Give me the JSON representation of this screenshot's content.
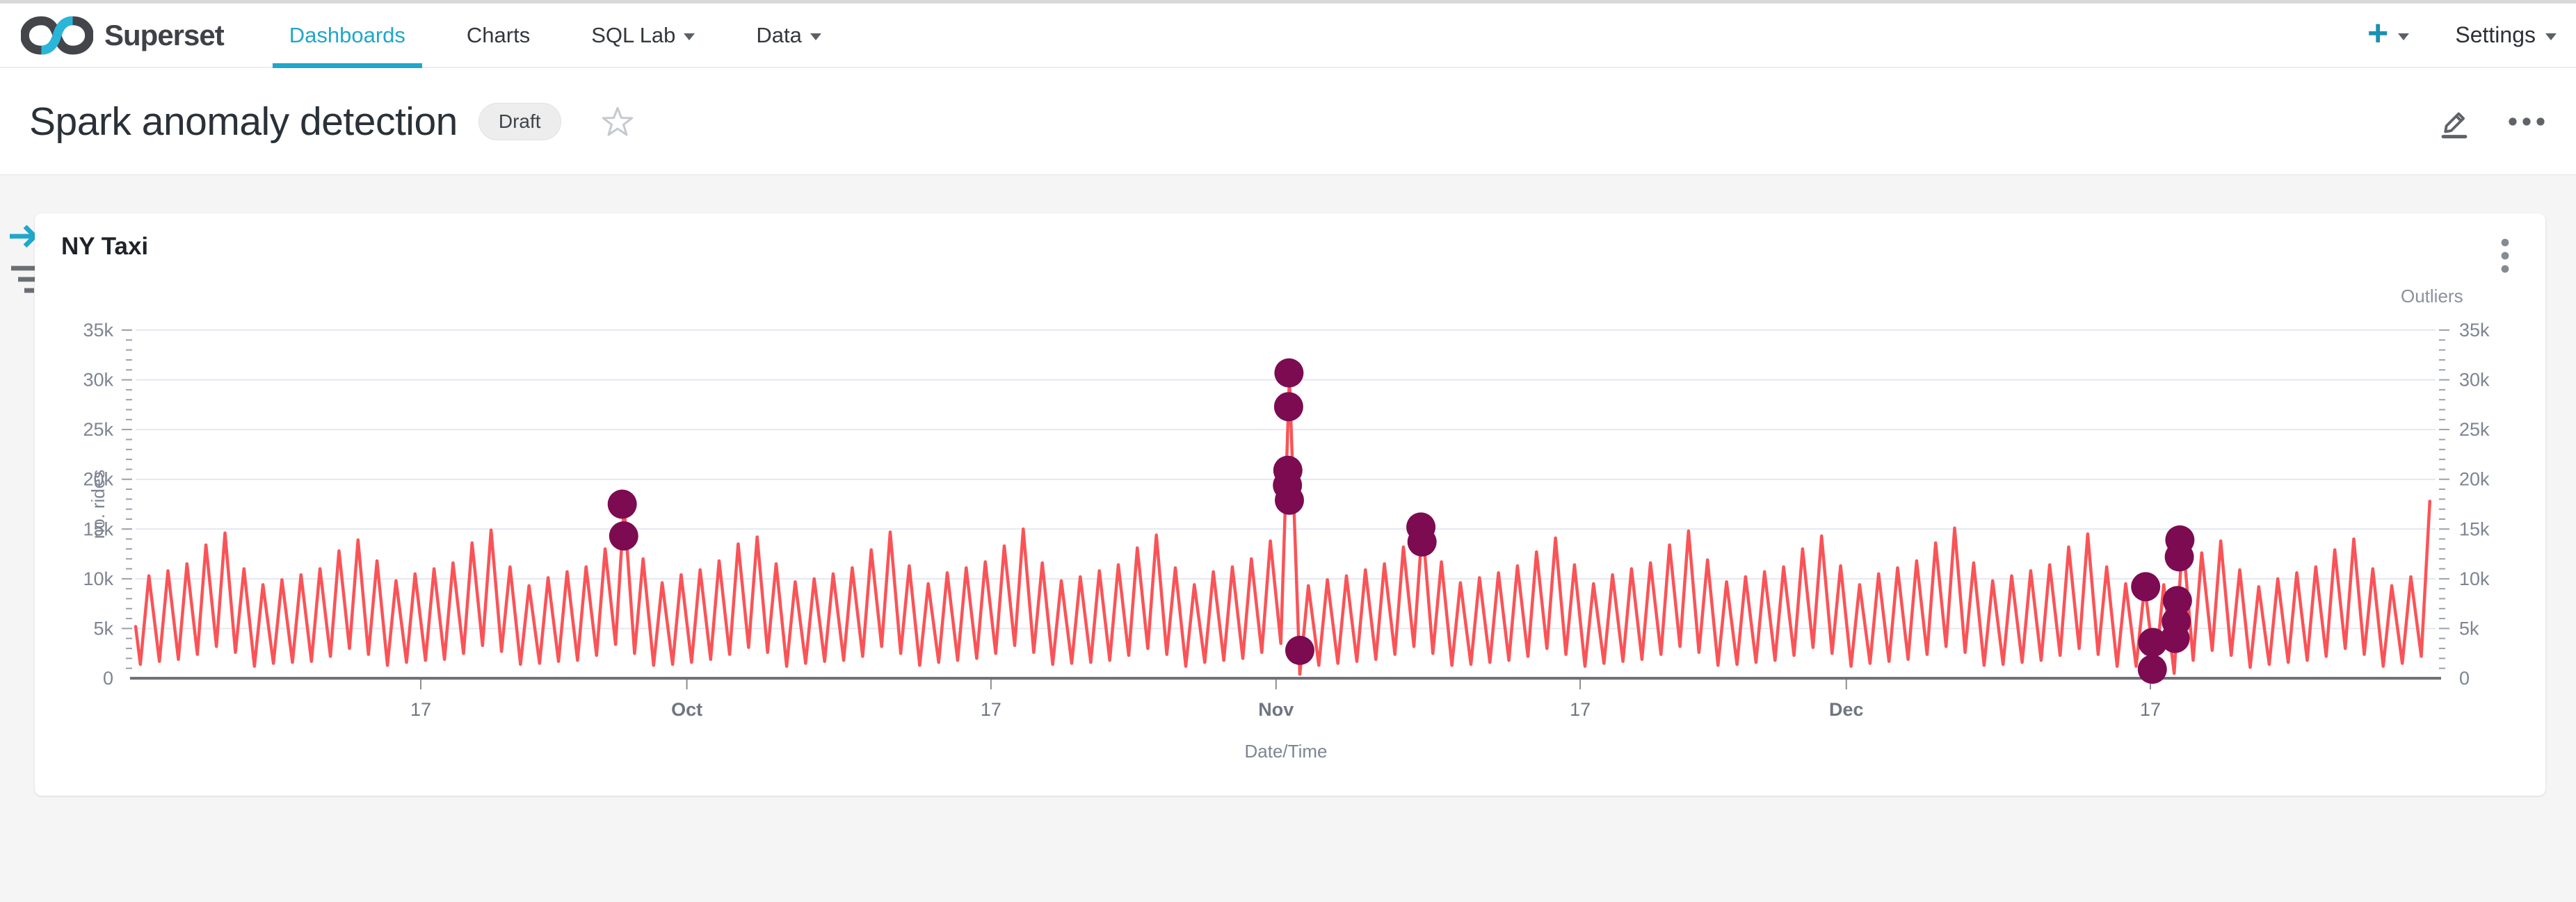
{
  "theme": {
    "accent": "#20a7c9",
    "line_color": "#fa5357",
    "outlier_color": "#7c0b52"
  },
  "nav": {
    "brand": "Superset",
    "items": [
      {
        "label": "Dashboards",
        "active": true,
        "caret": false
      },
      {
        "label": "Charts",
        "active": false,
        "caret": false
      },
      {
        "label": "SQL Lab",
        "active": false,
        "caret": true
      },
      {
        "label": "Data",
        "active": false,
        "caret": true
      }
    ],
    "plus_label": "+",
    "settings_label": "Settings"
  },
  "header": {
    "title": "Spark anomaly detection",
    "status_badge": "Draft"
  },
  "card": {
    "title": "NY Taxi"
  },
  "chart_data": {
    "type": "line",
    "title": "NY Taxi",
    "xlabel": "Date/Time",
    "ylabel_left": "no. rides",
    "ylabel_right": "Outliers",
    "ylim": [
      0,
      35000
    ],
    "y_ticks": [
      "0",
      "5k",
      "10k",
      "15k",
      "20k",
      "25k",
      "30k",
      "35k"
    ],
    "x_tick_labels": [
      "17",
      "Oct",
      "17",
      "Nov",
      "17",
      "Dec",
      "17"
    ],
    "x_tick_days": [
      15,
      29,
      45,
      60,
      76,
      90,
      106
    ],
    "days_total": 121,
    "grid": true,
    "legend_position": "none",
    "series": [
      {
        "name": "rides",
        "type": "line",
        "color": "#fa5357",
        "points_per_day": 2,
        "lead_in_k": 5.2,
        "daily_troughs_k": [
          1.4,
          1.7,
          1.9,
          2.4,
          3.2,
          2.6,
          1.2,
          1.5,
          1.6,
          1.7,
          2.2,
          3.0,
          2.4,
          1.3,
          1.6,
          1.8,
          1.9,
          2.5,
          3.3,
          2.7,
          1.4,
          1.5,
          1.7,
          1.8,
          2.3,
          3.4,
          2.5,
          1.3,
          1.4,
          1.6,
          1.9,
          2.4,
          3.1,
          2.6,
          1.2,
          1.5,
          1.7,
          1.8,
          2.2,
          3.2,
          2.5,
          1.3,
          1.6,
          1.8,
          2.0,
          2.5,
          3.3,
          2.6,
          1.4,
          1.5,
          1.6,
          1.8,
          2.3,
          3.0,
          2.4,
          1.2,
          1.6,
          1.8,
          2.0,
          2.6,
          3.5,
          0.4,
          1.3,
          1.5,
          1.7,
          1.9,
          2.4,
          3.2,
          2.5,
          1.3,
          1.4,
          1.6,
          1.8,
          2.2,
          3.0,
          2.4,
          1.2,
          1.5,
          1.7,
          1.9,
          2.4,
          3.2,
          2.6,
          1.3,
          1.4,
          1.6,
          1.8,
          2.3,
          3.1,
          2.5,
          1.2,
          1.5,
          1.7,
          1.9,
          2.4,
          3.2,
          2.6,
          1.3,
          1.4,
          1.6,
          1.8,
          2.3,
          3.0,
          2.4,
          1.2,
          1.2,
          0.6,
          0.5,
          1.8,
          2.8,
          2.3,
          1.1,
          1.4,
          1.6,
          1.8,
          2.2,
          3.0,
          2.4,
          1.2,
          1.5,
          2.2
        ],
        "daily_peaks_k": [
          10.3,
          10.8,
          11.5,
          13.4,
          14.6,
          11.0,
          9.4,
          9.9,
          10.4,
          11.0,
          12.8,
          13.9,
          11.8,
          9.8,
          10.5,
          11.0,
          11.6,
          13.6,
          14.9,
          11.2,
          9.3,
          10.1,
          10.7,
          11.2,
          13.0,
          17.3,
          12.0,
          9.6,
          10.4,
          10.9,
          11.8,
          13.5,
          14.2,
          11.5,
          9.7,
          10.0,
          10.5,
          11.1,
          12.9,
          14.7,
          11.3,
          9.5,
          10.6,
          11.1,
          11.7,
          13.3,
          15.0,
          11.6,
          9.8,
          10.2,
          10.8,
          11.4,
          13.1,
          14.4,
          11.1,
          9.4,
          10.7,
          11.2,
          12.0,
          13.8,
          30.2,
          9.3,
          9.9,
          10.3,
          10.9,
          11.5,
          13.2,
          15.4,
          11.7,
          9.6,
          10.1,
          10.6,
          11.3,
          12.7,
          14.1,
          11.4,
          9.5,
          10.4,
          11.0,
          11.6,
          13.4,
          14.8,
          11.9,
          9.7,
          10.2,
          10.7,
          11.2,
          13.0,
          14.3,
          11.3,
          9.4,
          10.5,
          11.1,
          11.8,
          13.6,
          15.1,
          11.6,
          9.8,
          10.3,
          10.8,
          11.4,
          13.2,
          14.5,
          11.2,
          9.5,
          9.3,
          9.4,
          14.2,
          12.6,
          13.8,
          10.9,
          9.2,
          10.0,
          10.6,
          11.2,
          12.9,
          14.0,
          11.0,
          9.3,
          10.2,
          17.8
        ]
      },
      {
        "name": "Outliers",
        "type": "scatter",
        "color": "#7c0b52",
        "marker_radius_px": 21,
        "points": [
          [
            25.6,
            17.5
          ],
          [
            25.68,
            14.3
          ],
          [
            60.6,
            19.4
          ],
          [
            60.62,
            20.9
          ],
          [
            60.66,
            27.3
          ],
          [
            60.68,
            30.7
          ],
          [
            60.7,
            17.9
          ],
          [
            61.25,
            2.8
          ],
          [
            67.62,
            15.2
          ],
          [
            67.68,
            13.7
          ],
          [
            105.75,
            9.2
          ],
          [
            106.1,
            0.9
          ],
          [
            106.12,
            3.6
          ],
          [
            107.3,
            4.0
          ],
          [
            107.36,
            5.7
          ],
          [
            107.42,
            7.8
          ],
          [
            107.52,
            12.2
          ],
          [
            107.55,
            13.9
          ]
        ]
      }
    ]
  }
}
